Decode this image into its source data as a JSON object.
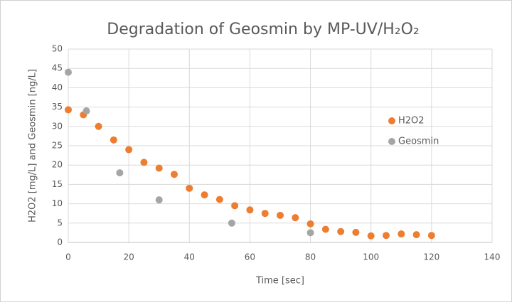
{
  "chart_data": {
    "type": "scatter",
    "title": "Degradation of Geosmin by MP-UV/H₂O₂",
    "x_label": "Time [sec]",
    "y_label": "H2O2 [mg/L]  and Geosmin [ng/L]",
    "xlim": [
      0,
      140
    ],
    "xticks": [
      0,
      20,
      40,
      60,
      80,
      100,
      120,
      140
    ],
    "ylim": [
      0,
      50
    ],
    "yticks": [
      0,
      5,
      10,
      15,
      20,
      25,
      30,
      35,
      40,
      45,
      50
    ],
    "grid": true,
    "legend": "right",
    "series": [
      {
        "name": "H2O2",
        "color": "#ed7d31",
        "x": [
          0,
          5,
          10,
          15,
          20,
          25,
          30,
          35,
          40,
          45,
          50,
          55,
          60,
          65,
          70,
          75,
          80,
          85,
          90,
          95,
          100,
          105,
          110,
          115,
          120
        ],
        "values": [
          34.3,
          33,
          30,
          26.5,
          24,
          20.7,
          19.2,
          17.6,
          14,
          12.3,
          11.1,
          9.5,
          8.4,
          7.5,
          7,
          6.4,
          4.8,
          3.4,
          2.8,
          2.6,
          1.7,
          1.8,
          2.2,
          2,
          1.8
        ]
      },
      {
        "name": "Geosmin",
        "color": "#a5a5a5",
        "x": [
          0,
          6,
          17,
          30,
          54,
          80
        ],
        "values": [
          44,
          34,
          18,
          11,
          5,
          2.5
        ]
      }
    ]
  }
}
